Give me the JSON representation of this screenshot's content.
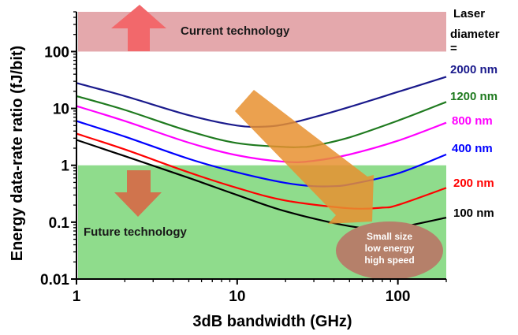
{
  "chart_data": {
    "type": "line",
    "xlabel": "3dB bandwidth (GHz)",
    "ylabel": "Energy  data-rate ratio (fJ/bit)",
    "x_scale": "log",
    "y_scale": "log",
    "xlim": [
      1,
      200
    ],
    "ylim": [
      0.01,
      500
    ],
    "x_ticks": [
      1,
      10,
      100
    ],
    "x_tick_labels": [
      "1",
      "10",
      "100"
    ],
    "y_ticks": [
      0.01,
      0.1,
      1,
      10,
      100
    ],
    "y_tick_labels": [
      "0.01",
      "0.1",
      "1",
      "10",
      "100"
    ],
    "legend_title": [
      "Laser",
      "diameter",
      "="
    ],
    "series": [
      {
        "name": "2000 nm",
        "color": "#1a1a8c",
        "x": [
          1,
          2,
          5,
          10,
          15,
          20,
          30,
          50,
          100,
          200
        ],
        "y": [
          28,
          16.5,
          7.6,
          5.0,
          4.8,
          5.3,
          7.0,
          10.6,
          19.5,
          36
        ]
      },
      {
        "name": "1200 nm",
        "color": "#1f7a1f",
        "x": [
          1,
          2,
          5,
          10,
          20,
          25,
          30,
          50,
          100,
          200
        ],
        "y": [
          16.5,
          9.4,
          4.0,
          2.45,
          2.1,
          2.1,
          2.2,
          3.1,
          6.1,
          13
        ]
      },
      {
        "name": "800 nm",
        "color": "#ff00ff",
        "x": [
          1,
          2,
          5,
          10,
          20,
          30,
          50,
          100,
          200
        ],
        "y": [
          11,
          6.0,
          2.5,
          1.5,
          1.15,
          1.2,
          1.55,
          2.7,
          5.6
        ]
      },
      {
        "name": "400 nm",
        "color": "#0000ff",
        "x": [
          1,
          2,
          5,
          10,
          20,
          30,
          40,
          50,
          100,
          200
        ],
        "y": [
          6.0,
          3.2,
          1.3,
          0.75,
          0.49,
          0.43,
          0.43,
          0.46,
          0.72,
          1.55
        ]
      },
      {
        "name": "200 nm",
        "color": "#ff0000",
        "x": [
          1,
          2,
          5,
          10,
          20,
          50,
          80,
          100,
          200
        ],
        "y": [
          3.6,
          1.9,
          0.75,
          0.4,
          0.24,
          0.175,
          0.18,
          0.2,
          0.4
        ]
      },
      {
        "name": "100 nm",
        "color": "#000000",
        "x": [
          1,
          2,
          5,
          10,
          20,
          50,
          80,
          100,
          200
        ],
        "y": [
          2.8,
          1.45,
          0.6,
          0.3,
          0.155,
          0.085,
          0.078,
          0.08,
          0.12
        ]
      }
    ],
    "regions": [
      {
        "label": "Current technology",
        "y_from": 100,
        "y_to": 500,
        "color": "#e4a8ac"
      },
      {
        "label": "Future technology",
        "y_from": 0.01,
        "y_to": 1,
        "color": "#8fdc8c"
      }
    ],
    "annotation": [
      "Small size",
      "low energy",
      "high speed"
    ]
  }
}
